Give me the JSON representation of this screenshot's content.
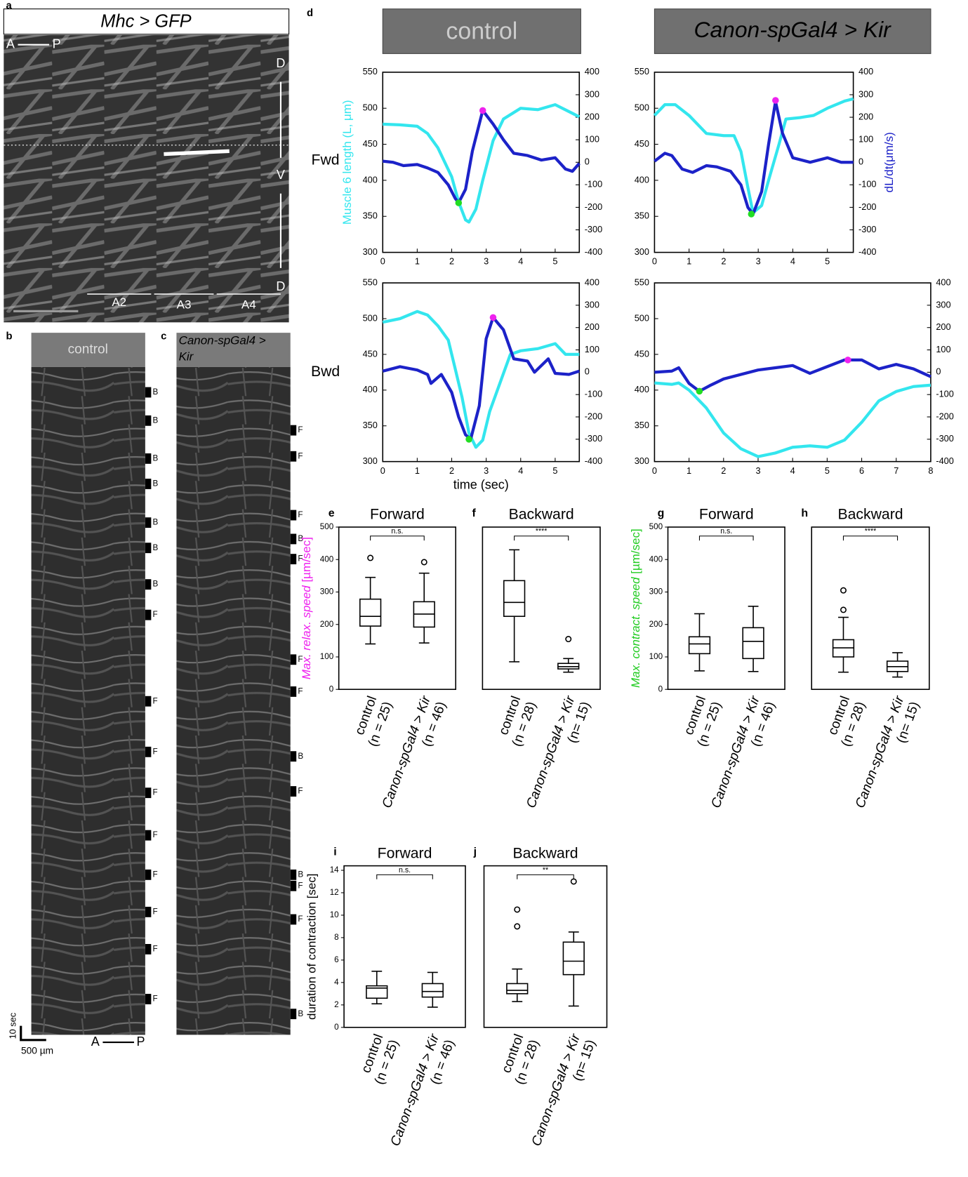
{
  "panels": [
    {
      "label": "a",
      "title": "Mhc > GFP",
      "axis_ap": [
        "A",
        "P"
      ],
      "dorsal": "D",
      "ventral": "V",
      "dorsal_lower": "D",
      "segments": [
        "A2",
        "A3",
        "A4"
      ]
    },
    {
      "label": "b",
      "title": [
        "control"
      ],
      "markers": [
        "B",
        "B",
        "B",
        "B",
        "B",
        "B",
        "B",
        "F",
        "F",
        "F",
        "F",
        "F",
        "F",
        "F",
        "F",
        "F"
      ],
      "time_scale": "10 sec",
      "length_scale": "500 µm",
      "axis_ap": [
        "A",
        "P"
      ]
    },
    {
      "label": "c",
      "title": [
        "Canon-spGal4 >",
        "Kir"
      ],
      "markers": [
        "F",
        "F",
        "F",
        "B",
        "F",
        "F",
        "F",
        "B",
        "F",
        "B",
        "F",
        "F",
        "B"
      ]
    }
  ],
  "figure_d": {
    "label": "d",
    "columns": [
      "control",
      "Canon-spGal4 > Kir"
    ],
    "rows": [
      "Fwd",
      "Bwd"
    ],
    "y_label": "Muscle 6 length (L, μm)",
    "y2_label": "dL/dt(μm/s)",
    "x_label": "time (sec)"
  },
  "chart_data": [
    {
      "type": "line",
      "xlim": [
        0,
        5.7
      ],
      "xticks": [
        0,
        1,
        2,
        3,
        4,
        5
      ],
      "ylim": [
        300,
        550
      ],
      "yticks": [
        300,
        350,
        400,
        450,
        500,
        550
      ],
      "y2lim": [
        -400,
        400
      ],
      "y2ticks": [
        -400,
        -300,
        -200,
        -100,
        0,
        100,
        200,
        300,
        400
      ],
      "series": [
        {
          "color": "#33e6ee",
          "x": [
            0,
            0.5,
            1,
            1.3,
            1.6,
            2.0,
            2.2,
            2.4,
            2.5,
            2.7,
            2.9,
            3.2,
            3.5,
            4.0,
            4.5,
            5.0,
            5.5,
            5.7
          ],
          "values": [
            478,
            477,
            475,
            465,
            445,
            405,
            370,
            345,
            342,
            360,
            400,
            455,
            485,
            500,
            498,
            505,
            493,
            488
          ]
        },
        {
          "color": "#1c22c8",
          "axis": "y2",
          "x": [
            0,
            0.3,
            0.6,
            1.0,
            1.3,
            1.6,
            1.9,
            2.1,
            2.2,
            2.4,
            2.6,
            2.9,
            3.2,
            3.5,
            3.8,
            4.2,
            4.6,
            5.0,
            5.3,
            5.5,
            5.7
          ],
          "values": [
            5,
            0,
            -15,
            -10,
            -25,
            -45,
            -100,
            -160,
            -180,
            -120,
            50,
            230,
            170,
            100,
            40,
            30,
            10,
            20,
            -30,
            -40,
            -5
          ]
        }
      ],
      "points": [
        {
          "color": "#22dd22",
          "axis": "y2",
          "x": 2.2,
          "y": -180
        },
        {
          "color": "#ee22ee",
          "axis": "y2",
          "x": 2.9,
          "y": 230
        }
      ]
    },
    {
      "type": "line",
      "xlim": [
        0,
        5.75
      ],
      "xticks": [
        0,
        1,
        2,
        3,
        4,
        5
      ],
      "ylim": [
        300,
        550
      ],
      "yticks": [
        300,
        350,
        400,
        450,
        500,
        550
      ],
      "y2lim": [
        -400,
        400
      ],
      "y2ticks": [
        -400,
        -300,
        -200,
        -100,
        0,
        100,
        200,
        300,
        400
      ],
      "series": [
        {
          "color": "#33e6ee",
          "x": [
            0,
            0.3,
            0.6,
            1.0,
            1.5,
            2.0,
            2.3,
            2.5,
            2.7,
            2.85,
            3.1,
            3.3,
            3.6,
            3.8,
            4.2,
            4.6,
            5.0,
            5.5,
            5.75
          ],
          "values": [
            490,
            505,
            505,
            490,
            465,
            462,
            462,
            440,
            390,
            355,
            365,
            400,
            450,
            485,
            487,
            490,
            500,
            510,
            513
          ]
        },
        {
          "color": "#1c22c8",
          "axis": "y2",
          "x": [
            0,
            0.3,
            0.5,
            0.8,
            1.1,
            1.5,
            1.8,
            2.2,
            2.5,
            2.7,
            2.85,
            3.1,
            3.3,
            3.5,
            3.7,
            4.0,
            4.5,
            5.0,
            5.4,
            5.75
          ],
          "values": [
            5,
            40,
            30,
            -30,
            -45,
            -15,
            -20,
            -40,
            -100,
            -200,
            -230,
            -130,
            80,
            270,
            130,
            20,
            0,
            20,
            0,
            0
          ]
        }
      ],
      "points": [
        {
          "color": "#22dd22",
          "axis": "y2",
          "x": 2.8,
          "y": -230
        },
        {
          "color": "#ee22ee",
          "axis": "y2",
          "x": 3.5,
          "y": 275
        }
      ]
    },
    {
      "type": "line",
      "xlim": [
        0,
        5.7
      ],
      "xticks": [
        0,
        1,
        2,
        3,
        4,
        5
      ],
      "ylim": [
        300,
        550
      ],
      "yticks": [
        300,
        350,
        400,
        450,
        500,
        550
      ],
      "y2lim": [
        -400,
        400
      ],
      "y2ticks": [
        -400,
        -300,
        -200,
        -100,
        0,
        100,
        200,
        300,
        400
      ],
      "series": [
        {
          "color": "#33e6ee",
          "x": [
            0,
            0.5,
            1.0,
            1.3,
            1.6,
            1.9,
            2.1,
            2.3,
            2.5,
            2.7,
            2.9,
            3.1,
            3.4,
            3.7,
            4.0,
            4.5,
            5.0,
            5.3,
            5.7
          ],
          "values": [
            495,
            500,
            510,
            505,
            490,
            470,
            430,
            390,
            340,
            320,
            330,
            370,
            410,
            450,
            455,
            458,
            465,
            450,
            450
          ]
        },
        {
          "color": "#1c22c8",
          "axis": "y2",
          "x": [
            0,
            0.5,
            1.0,
            1.3,
            1.4,
            1.7,
            2.0,
            2.2,
            2.4,
            2.55,
            2.8,
            3.0,
            3.2,
            3.5,
            3.8,
            4.2,
            4.4,
            4.8,
            5.0,
            5.4,
            5.7
          ],
          "values": [
            5,
            25,
            10,
            -10,
            -50,
            -10,
            -90,
            -200,
            -280,
            -300,
            -150,
            150,
            245,
            190,
            60,
            50,
            0,
            60,
            -5,
            -10,
            5
          ]
        }
      ],
      "points": [
        {
          "color": "#22dd22",
          "axis": "y2",
          "x": 2.5,
          "y": -300
        },
        {
          "color": "#ee22ee",
          "axis": "y2",
          "x": 3.2,
          "y": 245
        }
      ]
    },
    {
      "type": "line",
      "xlim": [
        0,
        8
      ],
      "xticks": [
        0,
        1,
        2,
        3,
        4,
        5,
        6,
        7,
        8
      ],
      "ylim": [
        300,
        550
      ],
      "yticks": [
        300,
        350,
        400,
        450,
        500,
        550
      ],
      "y2lim": [
        -400,
        400
      ],
      "y2ticks": [
        -400,
        -300,
        -200,
        -100,
        0,
        100,
        200,
        300,
        400
      ],
      "series": [
        {
          "color": "#33e6ee",
          "x": [
            0,
            0.5,
            0.7,
            1.0,
            1.5,
            2.0,
            2.5,
            3.0,
            3.5,
            4.0,
            4.5,
            5.0,
            5.5,
            6.0,
            6.5,
            7.0,
            7.5,
            8.0
          ],
          "values": [
            410,
            408,
            410,
            400,
            375,
            340,
            318,
            307,
            312,
            320,
            322,
            320,
            330,
            355,
            385,
            398,
            405,
            407
          ]
        },
        {
          "color": "#1c22c8",
          "axis": "y2",
          "x": [
            0,
            0.5,
            0.7,
            1.0,
            1.3,
            1.6,
            2.0,
            2.5,
            3.0,
            3.5,
            4.0,
            4.5,
            5.0,
            5.5,
            6.0,
            6.5,
            7.0,
            7.5,
            8.0
          ],
          "values": [
            0,
            5,
            20,
            -50,
            -85,
            -60,
            -30,
            -10,
            10,
            20,
            30,
            -5,
            25,
            55,
            55,
            15,
            35,
            15,
            -20
          ]
        }
      ],
      "points": [
        {
          "color": "#22dd22",
          "axis": "y2",
          "x": 1.3,
          "y": -85
        },
        {
          "color": "#ee22ee",
          "axis": "y2",
          "x": 5.6,
          "y": 55
        }
      ]
    },
    {
      "type": "box",
      "label": "e",
      "title": "Forward",
      "significance": "n.s.",
      "y_label": [
        "Max. relax. speed",
        " [µm/sec]"
      ],
      "y_label_color": "#ee22ee",
      "ylim": [
        0,
        500
      ],
      "yticks": [
        0,
        100,
        200,
        300,
        400,
        500
      ],
      "categories": [
        [
          "control",
          "(n = 25)"
        ],
        [
          "Canon-spGal4 > Kir",
          "(n = 46)"
        ]
      ],
      "boxes": [
        {
          "whisker_low": 140,
          "q1": 195,
          "median": 225,
          "q3": 278,
          "whisker_high": 345,
          "outliers": [
            405
          ]
        },
        {
          "whisker_low": 143,
          "q1": 192,
          "median": 232,
          "q3": 270,
          "whisker_high": 358,
          "outliers": [
            392
          ]
        }
      ]
    },
    {
      "type": "box",
      "label": "f",
      "title": "Backward",
      "significance": "****",
      "ylim": [
        0,
        500
      ],
      "categories": [
        [
          "control",
          "(n = 28)"
        ],
        [
          "Canon-spGal4 > Kir",
          "(n= 15)"
        ]
      ],
      "boxes": [
        {
          "whisker_low": 85,
          "q1": 225,
          "median": 268,
          "q3": 335,
          "whisker_high": 430,
          "outliers": []
        },
        {
          "whisker_low": 53,
          "q1": 63,
          "median": 70,
          "q3": 80,
          "whisker_high": 95,
          "outliers": [
            155
          ]
        }
      ]
    },
    {
      "type": "box",
      "label": "g",
      "title": "Forward",
      "significance": "n.s.",
      "y_label": [
        "Max. contract. speed",
        " [µm/sec]"
      ],
      "y_label_color": "#22cc22",
      "ylim": [
        0,
        500
      ],
      "yticks": [
        0,
        100,
        200,
        300,
        400,
        500
      ],
      "categories": [
        [
          "control",
          "(n = 25)"
        ],
        [
          "Canon-spGal4 > Kir",
          "(n = 46)"
        ]
      ],
      "boxes": [
        {
          "whisker_low": 57,
          "q1": 110,
          "median": 140,
          "q3": 162,
          "whisker_high": 233,
          "outliers": []
        },
        {
          "whisker_low": 55,
          "q1": 95,
          "median": 148,
          "q3": 190,
          "whisker_high": 256,
          "outliers": []
        }
      ]
    },
    {
      "type": "box",
      "label": "h",
      "title": "Backward",
      "significance": "****",
      "ylim": [
        0,
        500
      ],
      "categories": [
        [
          "control",
          "(n = 28)"
        ],
        [
          "Canon-spGal4 > Kir",
          "(n= 15)"
        ]
      ],
      "boxes": [
        {
          "whisker_low": 53,
          "q1": 100,
          "median": 128,
          "q3": 153,
          "whisker_high": 222,
          "outliers": [
            245,
            305
          ]
        },
        {
          "whisker_low": 38,
          "q1": 55,
          "median": 70,
          "q3": 87,
          "whisker_high": 113,
          "outliers": []
        }
      ]
    },
    {
      "type": "box",
      "label": "i",
      "title": "Forward",
      "significance": "n.s.",
      "y_label": [
        "duration of contraction [sec]"
      ],
      "y_label_color": "#000000",
      "ylim": [
        0,
        14.4
      ],
      "yticks": [
        0,
        2,
        4,
        6,
        8,
        10,
        12,
        14
      ],
      "categories": [
        [
          "control",
          "(n = 25)"
        ],
        [
          "Canon-spGal4 > Kir",
          "(n = 46)"
        ]
      ],
      "boxes": [
        {
          "whisker_low": 2.1,
          "q1": 2.6,
          "median": 3.5,
          "q3": 3.7,
          "whisker_high": 5.0,
          "outliers": []
        },
        {
          "whisker_low": 1.8,
          "q1": 2.7,
          "median": 3.2,
          "q3": 3.9,
          "whisker_high": 4.9,
          "outliers": []
        }
      ]
    },
    {
      "type": "box",
      "label": "j",
      "title": "Backward",
      "significance": "**",
      "ylim": [
        0,
        14.4
      ],
      "categories": [
        [
          "control",
          "(n = 28)"
        ],
        [
          "Canon-spGal4 > Kir",
          "(n= 15)"
        ]
      ],
      "boxes": [
        {
          "whisker_low": 2.3,
          "q1": 3.0,
          "median": 3.3,
          "q3": 3.9,
          "whisker_high": 5.2,
          "outliers": [
            9.0,
            10.5
          ]
        },
        {
          "whisker_low": 1.9,
          "q1": 4.7,
          "median": 5.9,
          "q3": 7.6,
          "whisker_high": 8.5,
          "outliers": [
            13
          ]
        }
      ]
    }
  ]
}
